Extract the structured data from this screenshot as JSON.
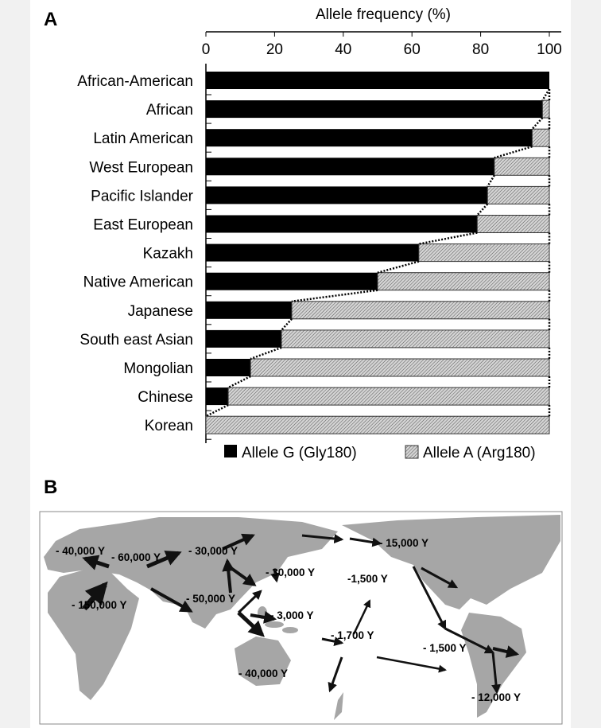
{
  "panels": {
    "a": "A",
    "b": "B"
  },
  "chart_data": {
    "type": "bar",
    "stacked": true,
    "orientation": "horizontal",
    "xlabel": "Allele frequency (%)",
    "xlim": [
      0,
      100
    ],
    "xticks": [
      "0",
      "20",
      "40",
      "60",
      "80",
      "100"
    ],
    "categories": [
      "African-American",
      "African",
      "Latin American",
      "West European",
      "Pacific Islander",
      "East European",
      "Kazakh",
      "Native American",
      "Japanese",
      "South east Asian",
      "Mongolian",
      "Chinese",
      "Korean"
    ],
    "series": [
      {
        "name": "Allele G (Gly180)",
        "color": "#000000",
        "values": [
          100,
          98,
          95,
          84,
          82,
          79,
          62,
          50,
          25,
          22,
          13,
          6.5,
          0
        ]
      },
      {
        "name": "Allele A (Arg180)",
        "color": "hatched-gray",
        "values": [
          0,
          2,
          5,
          16,
          18,
          21,
          38,
          50,
          75,
          78,
          87,
          93.5,
          100
        ]
      }
    ],
    "legend": "bottom"
  },
  "map": {
    "labels": [
      "- 40,000 Y",
      "- 60,000 Y",
      "- 30,000 Y",
      "- 15,000 Y",
      "- 30,000 Y",
      "-1,500 Y",
      "- 150,000 Y",
      "- 50,000 Y",
      "- 3,000 Y",
      "- 1,700 Y",
      "- 1,500 Y",
      "- 40,000 Y",
      "- 12,000 Y"
    ],
    "land_color": "#a6a6a6"
  }
}
